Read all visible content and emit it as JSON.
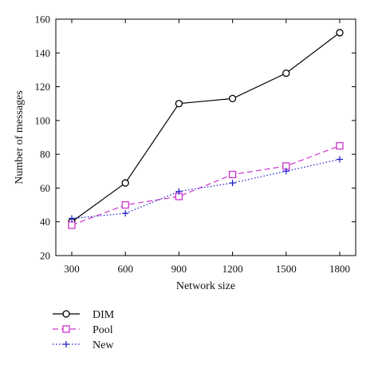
{
  "chart_data": {
    "type": "line",
    "xlabel": "Network size",
    "ylabel": "Number of messages",
    "categories": [
      "300",
      "600",
      "900",
      "1200",
      "1500",
      "1800"
    ],
    "x": [
      300,
      600,
      900,
      1200,
      1500,
      1800
    ],
    "xlim": [
      300,
      1800
    ],
    "ylim": [
      20,
      160
    ],
    "yticks": [
      "20",
      "40",
      "60",
      "80",
      "100",
      "120",
      "140",
      "160"
    ],
    "grid": false,
    "legend_placement": "below",
    "series": [
      {
        "name": "DIM",
        "values": [
          40,
          63,
          110,
          113,
          128,
          152
        ],
        "color": "#000000",
        "marker": "circle",
        "line": "solid"
      },
      {
        "name": "Pool",
        "values": [
          38,
          50,
          55,
          68,
          73,
          85
        ],
        "color": "#cc33cc",
        "marker": "square",
        "line": "dashed"
      },
      {
        "name": "New",
        "values": [
          42,
          45,
          58,
          63,
          70,
          77
        ],
        "color": "#1a1acc",
        "marker": "plus",
        "line": "dotted"
      }
    ]
  }
}
